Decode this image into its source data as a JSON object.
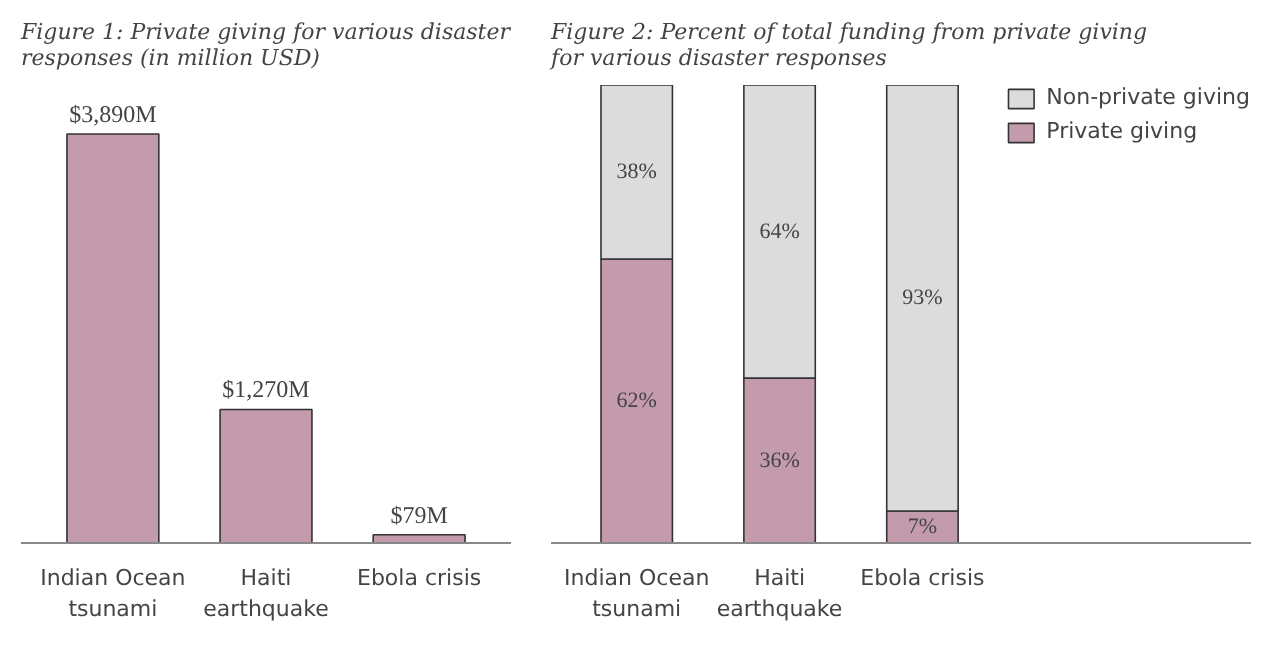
{
  "chart_data": [
    {
      "type": "bar",
      "title": "Figure 1: Private giving for various disaster responses (in million USD)",
      "categories": [
        "Indian Ocean tsunami",
        "Haiti earthquake",
        "Ebola crisis"
      ],
      "values": [
        3890,
        1270,
        79
      ],
      "value_labels": [
        "$3,890M",
        "$1,270M",
        "$79M"
      ],
      "color": "#c49aad"
    },
    {
      "type": "bar",
      "title": "Figure 2: Percent of total funding from private giving for various disaster responses",
      "categories": [
        "Indian Ocean tsunami",
        "Haiti earthquake",
        "Ebola crisis"
      ],
      "stacked": true,
      "legend": "right",
      "series": [
        {
          "name": "Private giving",
          "color": "#c49aad",
          "values": [
            62,
            36,
            7
          ],
          "value_labels": [
            "62%",
            "36%",
            "7%"
          ]
        },
        {
          "name": "Non-private giving",
          "color": "#dcdcdc",
          "values": [
            38,
            64,
            93
          ],
          "value_labels": [
            "38%",
            "64%",
            "93%"
          ]
        }
      ]
    }
  ]
}
